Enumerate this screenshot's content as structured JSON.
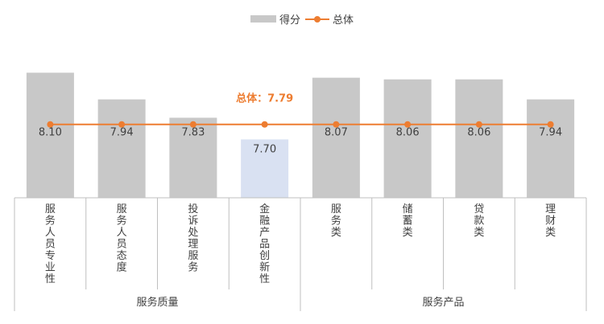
{
  "legend": {
    "bar_label": "得分",
    "line_label": "总体"
  },
  "colors": {
    "bar": "#c8c8c8",
    "bar_highlight": "#d9e1f2",
    "line": "#ed7d31",
    "axis": "#bfbfbf",
    "text": "#404040"
  },
  "chart_data": {
    "type": "bar",
    "categories": [
      "服务人员专业性",
      "服务人员态度",
      "投诉处理服务",
      "金融产品创新性",
      "服务类",
      "储蓄类",
      "贷款类",
      "理财类"
    ],
    "values": [
      8.1,
      7.94,
      7.83,
      7.7,
      8.07,
      8.06,
      8.06,
      7.94
    ],
    "value_labels": [
      "8.10",
      "7.94",
      "7.83",
      "7.70",
      "8.07",
      "8.06",
      "8.06",
      "7.94"
    ],
    "bar_colors": [
      "#c8c8c8",
      "#c8c8c8",
      "#c8c8c8",
      "#d9e1f2",
      "#c8c8c8",
      "#c8c8c8",
      "#c8c8c8",
      "#c8c8c8"
    ],
    "groups": [
      {
        "label": "服务质量",
        "count": 4
      },
      {
        "label": "服务产品",
        "count": 4
      }
    ],
    "series": [
      {
        "name": "得分",
        "type": "bar",
        "values": [
          8.1,
          7.94,
          7.83,
          7.7,
          8.07,
          8.06,
          8.06,
          7.94
        ]
      },
      {
        "name": "总体",
        "type": "line",
        "values": [
          7.79,
          7.79,
          7.79,
          7.79,
          7.79,
          7.79,
          7.79,
          7.79
        ]
      }
    ],
    "overall": {
      "value": 7.79,
      "annotation": "总体：7.79"
    },
    "ylim": [
      7.35,
      8.16
    ],
    "grid": false,
    "legend_position": "top-center"
  }
}
